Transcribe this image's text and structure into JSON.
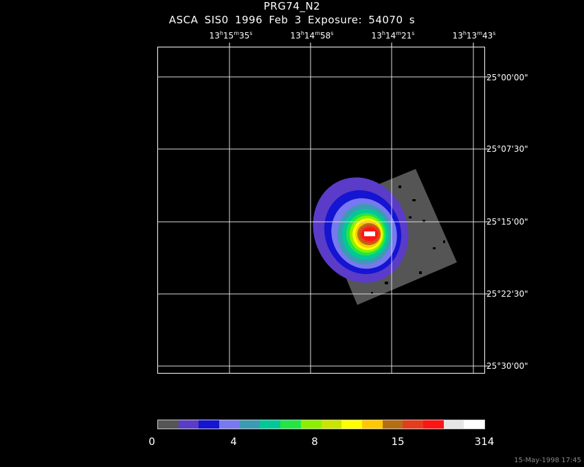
{
  "title": "PRG74_N2",
  "subtitle": "ASCA SIS0   1996 Feb  3    Exposure: 54070 s",
  "ra_ticks": [
    {
      "h": "13",
      "m": "15",
      "s": "35"
    },
    {
      "h": "13",
      "m": "14",
      "s": "58"
    },
    {
      "h": "13",
      "m": "14",
      "s": "21"
    },
    {
      "h": "13",
      "m": "13",
      "s": "43"
    }
  ],
  "dec_ticks": [
    "25°00'00\"",
    "25°07'30\"",
    "25°15'00\"",
    "25°22'30\"",
    "25°30'00\""
  ],
  "colorbar": {
    "colors": [
      "#555555",
      "#5a3cc8",
      "#1414d2",
      "#7878f0",
      "#3c9bb4",
      "#00c896",
      "#22e646",
      "#8cf000",
      "#c8e600",
      "#ffff00",
      "#ffc800",
      "#b46e14",
      "#e63c1e",
      "#ff1414",
      "#e6e6e6",
      "#ffffff"
    ],
    "labels": [
      "0",
      "4",
      "8",
      "15",
      "314"
    ]
  },
  "footer": "15-May-1998 17:45"
}
